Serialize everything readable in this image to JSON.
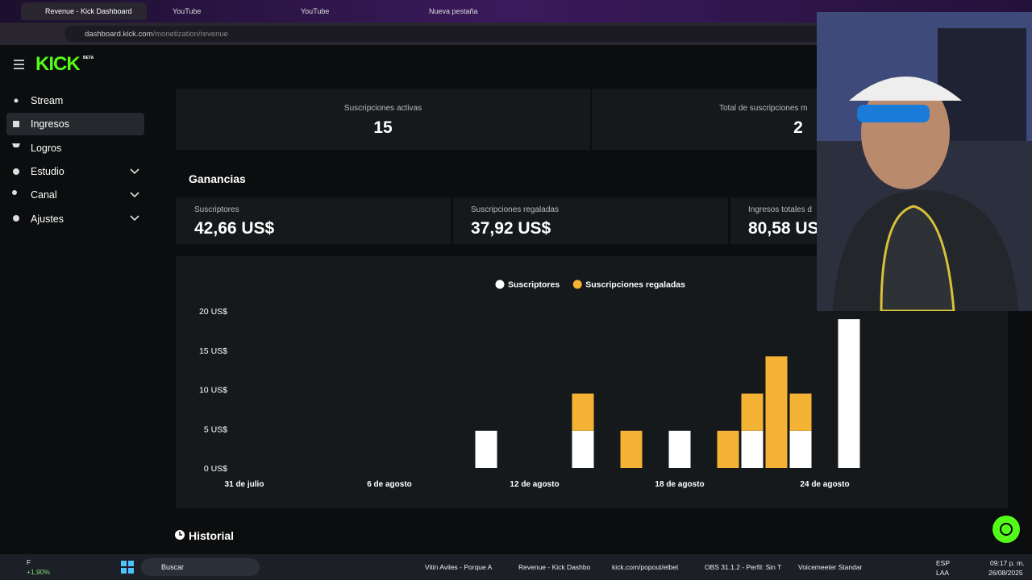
{
  "browser": {
    "tabs": [
      "Revenue - Kick Dashboard",
      "YouTube",
      "YouTube",
      "Nueva pestaña"
    ],
    "address_host": "dashboard.kick.com",
    "address_path": "/monetization/revenue"
  },
  "header": {
    "logo": "KICK",
    "logo_badge": "BETA"
  },
  "sidebar": {
    "items": [
      "Stream",
      "Ingresos",
      "Logros",
      "Estudio",
      "Canal",
      "Ajustes"
    ]
  },
  "summary": [
    {
      "label": "Suscripciones activas",
      "value": "15"
    },
    {
      "label": "Total de suscripciones m",
      "value": "2"
    }
  ],
  "earnings": {
    "title": "Ganancias",
    "cards": [
      {
        "label": "Suscriptores",
        "value": "42,66 US$"
      },
      {
        "label": "Suscripciones regaladas",
        "value": "37,92 US$"
      },
      {
        "label": "Ingresos totales d",
        "value": "80,58 US"
      }
    ]
  },
  "chart_data": {
    "type": "stacked-bar",
    "categories": [
      "31 de julio",
      null,
      null,
      null,
      null,
      null,
      "6 de agosto",
      null,
      null,
      null,
      null,
      null,
      "12 de agosto",
      null,
      null,
      null,
      null,
      null,
      "18 de agosto",
      null,
      null,
      null,
      null,
      null,
      "24 de agosto",
      null,
      null
    ],
    "series": [
      {
        "name": "Suscriptores",
        "color": "#ffffff",
        "values": [
          null,
          null,
          null,
          null,
          null,
          null,
          null,
          null,
          null,
          null,
          4.74,
          null,
          null,
          null,
          4.74,
          null,
          null,
          null,
          4.74,
          null,
          null,
          4.74,
          null,
          4.74,
          null,
          18.96,
          null
        ]
      },
      {
        "name": "Suscripciones regaladas",
        "color": "#f5b335",
        "values": [
          null,
          null,
          null,
          null,
          null,
          null,
          null,
          null,
          null,
          null,
          null,
          null,
          null,
          null,
          4.74,
          null,
          4.74,
          null,
          null,
          null,
          4.74,
          4.74,
          14.22,
          4.74,
          null,
          null,
          null
        ]
      }
    ],
    "ylim": [
      0,
      20
    ],
    "yticks": [
      {
        "value": 0,
        "label": "0 US$"
      },
      {
        "value": 5,
        "label": "5 US$"
      },
      {
        "value": 10,
        "label": "10 US$"
      },
      {
        "value": 15,
        "label": "15 US$"
      },
      {
        "value": 20,
        "label": "20 US$"
      }
    ]
  },
  "history": {
    "title": "Historial"
  },
  "taskbar": {
    "weather": "F",
    "stock": "+1,90%",
    "search": "Buscar",
    "apps": [
      "Vitin Aviles - Porque A",
      "Revenue - Kick Dashbo",
      "kick.com/popout/elbet",
      "OBS 31.1.2 - Perfil: Sin T",
      "Voicemeeter Standar"
    ],
    "lang": "ESP",
    "layout": "LAA",
    "time": "09:17 p. m.",
    "date": "26/08/2025"
  }
}
